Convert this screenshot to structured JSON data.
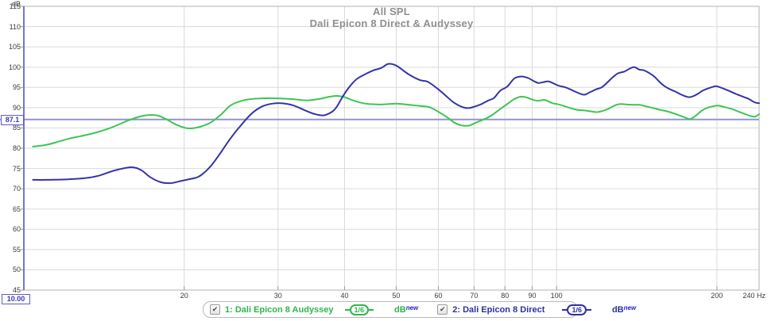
{
  "header": {
    "title": "All SPL",
    "subtitle": "Dali Epicon 8 Direct & Audyssey"
  },
  "y_axis": {
    "unit": "dB",
    "min": 45,
    "max": 115,
    "step": 5,
    "ticks": [
      115,
      110,
      105,
      100,
      95,
      90,
      85,
      80,
      75,
      70,
      65,
      60,
      55,
      50,
      45
    ]
  },
  "x_axis": {
    "unit": "Hz",
    "min": 10,
    "max": 240,
    "scale": "log",
    "ticks": [
      20,
      30,
      40,
      50,
      60,
      70,
      80,
      90,
      100,
      200
    ],
    "end_label": "240 Hz"
  },
  "cursor": {
    "freq_value": "10.00",
    "level_value": "87.1"
  },
  "legend": {
    "entries": [
      {
        "checked": true,
        "check_glyph": "✔",
        "label": "1: Dali Epicon 8 Audyssey",
        "smoothing": "1/6",
        "unit": "dB",
        "unit_suffix": "new",
        "color": "#2eb64d"
      },
      {
        "checked": true,
        "check_glyph": "✔",
        "label": "2: Dali Epicon 8 Direct",
        "smoothing": "1/6",
        "unit": "dB",
        "unit_suffix": "new",
        "color": "#30309e"
      }
    ]
  },
  "colors": {
    "audyssey_trace": "#3cc653",
    "direct_trace": "#3434a8",
    "target_line": "#9393ca",
    "axis_spine": "#7676cc",
    "grid": "#dadada",
    "border": "#b2b2b2",
    "title_text": "#8f8f8f",
    "tick_text": "#3a3a3a"
  },
  "chart_data": {
    "type": "line",
    "x_scale": "log",
    "x_range": [
      10,
      240
    ],
    "y_range": [
      45,
      115
    ],
    "x_unit": "Hz",
    "y_unit": "dB",
    "grid": true,
    "target_line_db": 87.1,
    "legend_position": "bottom",
    "title": "All SPL",
    "subtitle": "Dali Epicon 8 Direct & Audyssey",
    "series": [
      {
        "name": "1: Dali Epicon 8 Audyssey",
        "color": "#3cc653",
        "smoothing": "1/6",
        "points": [
          [
            10.4,
            80.4
          ],
          [
            11,
            80.8
          ],
          [
            11.6,
            81.6
          ],
          [
            12.2,
            82.4
          ],
          [
            12.8,
            83.0
          ],
          [
            13.6,
            83.8
          ],
          [
            14.6,
            85.1
          ],
          [
            15.6,
            86.7
          ],
          [
            16.4,
            87.7
          ],
          [
            17.2,
            88.2
          ],
          [
            17.9,
            88.0
          ],
          [
            18.6,
            87.0
          ],
          [
            19.4,
            85.7
          ],
          [
            20.3,
            84.9
          ],
          [
            21.3,
            85.2
          ],
          [
            22.4,
            86.3
          ],
          [
            23.4,
            88.2
          ],
          [
            24.4,
            90.5
          ],
          [
            25.5,
            91.6
          ],
          [
            26.6,
            92.1
          ],
          [
            28,
            92.3
          ],
          [
            30,
            92.3
          ],
          [
            32,
            92.1
          ],
          [
            34,
            91.8
          ],
          [
            36,
            92.2
          ],
          [
            37.5,
            92.7
          ],
          [
            38.8,
            92.9
          ],
          [
            40,
            92.6
          ],
          [
            41.5,
            91.8
          ],
          [
            43,
            91.2
          ],
          [
            44.5,
            90.9
          ],
          [
            47,
            90.8
          ],
          [
            50,
            91.0
          ],
          [
            53,
            90.7
          ],
          [
            55.5,
            90.4
          ],
          [
            57.8,
            90.1
          ],
          [
            60.5,
            88.7
          ],
          [
            62.5,
            87.5
          ],
          [
            64.5,
            86.2
          ],
          [
            66.5,
            85.6
          ],
          [
            68.5,
            85.6
          ],
          [
            70.5,
            86.3
          ],
          [
            73,
            87.1
          ],
          [
            75.5,
            88.1
          ],
          [
            78.4,
            89.7
          ],
          [
            80.8,
            90.9
          ],
          [
            83,
            92.0
          ],
          [
            85.5,
            92.7
          ],
          [
            88,
            92.5
          ],
          [
            90.5,
            91.9
          ],
          [
            92.4,
            91.7
          ],
          [
            95,
            91.9
          ],
          [
            98.3,
            91.1
          ],
          [
            101,
            90.8
          ],
          [
            105,
            90.1
          ],
          [
            109,
            89.5
          ],
          [
            113,
            89.3
          ],
          [
            116,
            89.1
          ],
          [
            119,
            88.9
          ],
          [
            122,
            89.2
          ],
          [
            125,
            89.7
          ],
          [
            127.5,
            90.3
          ],
          [
            129.5,
            90.7
          ],
          [
            132,
            90.9
          ],
          [
            135,
            90.8
          ],
          [
            139,
            90.7
          ],
          [
            143,
            90.7
          ],
          [
            147.5,
            90.3
          ],
          [
            152,
            89.9
          ],
          [
            156,
            89.5
          ],
          [
            160,
            89.2
          ],
          [
            165,
            88.7
          ],
          [
            170,
            88.1
          ],
          [
            174,
            87.6
          ],
          [
            178,
            87.2
          ],
          [
            182,
            87.9
          ],
          [
            187.5,
            89.3
          ],
          [
            192,
            90.0
          ],
          [
            196,
            90.3
          ],
          [
            201,
            90.5
          ],
          [
            206,
            90.2
          ],
          [
            213,
            89.7
          ],
          [
            219,
            89.1
          ],
          [
            226,
            88.4
          ],
          [
            232,
            87.9
          ],
          [
            236,
            87.8
          ],
          [
            240,
            88.4
          ]
        ]
      },
      {
        "name": "2: Dali Epicon 8 Direct",
        "color": "#3434a8",
        "smoothing": "1/6",
        "points": [
          [
            10.4,
            72.2
          ],
          [
            11,
            72.2
          ],
          [
            12,
            72.3
          ],
          [
            13,
            72.6
          ],
          [
            13.8,
            73.2
          ],
          [
            14.8,
            74.5
          ],
          [
            15.9,
            75.3
          ],
          [
            16.6,
            74.6
          ],
          [
            17.3,
            72.8
          ],
          [
            18.1,
            71.6
          ],
          [
            18.9,
            71.4
          ],
          [
            19.7,
            71.9
          ],
          [
            20.5,
            72.4
          ],
          [
            21.3,
            73.0
          ],
          [
            22.3,
            75.2
          ],
          [
            23.3,
            78.5
          ],
          [
            24.3,
            82.0
          ],
          [
            25.5,
            85.5
          ],
          [
            26.8,
            88.6
          ],
          [
            28,
            90.3
          ],
          [
            29.3,
            91.0
          ],
          [
            30.5,
            91.1
          ],
          [
            32,
            90.6
          ],
          [
            33.5,
            89.5
          ],
          [
            35,
            88.5
          ],
          [
            36.5,
            88.1
          ],
          [
            37.9,
            89.0
          ],
          [
            38.7,
            90.3
          ],
          [
            39.5,
            92.3
          ],
          [
            40.4,
            94.3
          ],
          [
            41.3,
            95.9
          ],
          [
            42.3,
            97.2
          ],
          [
            43.8,
            98.3
          ],
          [
            45.3,
            99.2
          ],
          [
            46.9,
            99.8
          ],
          [
            48.3,
            100.8
          ],
          [
            50,
            100.4
          ],
          [
            52.8,
            98.2
          ],
          [
            55.4,
            96.8
          ],
          [
            57.3,
            96.4
          ],
          [
            59.9,
            94.6
          ],
          [
            62,
            92.9
          ],
          [
            64.1,
            91.3
          ],
          [
            66.4,
            90.2
          ],
          [
            68.3,
            89.9
          ],
          [
            70.3,
            90.3
          ],
          [
            72.3,
            90.9
          ],
          [
            74.5,
            91.8
          ],
          [
            76.3,
            92.4
          ],
          [
            78.4,
            94.2
          ],
          [
            80.8,
            95.2
          ],
          [
            83.3,
            97.2
          ],
          [
            86,
            97.7
          ],
          [
            88.5,
            97.3
          ],
          [
            90.5,
            96.6
          ],
          [
            92.4,
            96.1
          ],
          [
            94.5,
            96.3
          ],
          [
            96.5,
            96.5
          ],
          [
            98.3,
            96.1
          ],
          [
            101,
            95.4
          ],
          [
            104,
            95.0
          ],
          [
            107,
            94.3
          ],
          [
            110,
            93.6
          ],
          [
            112.7,
            93.2
          ],
          [
            115.5,
            93.8
          ],
          [
            118.5,
            94.5
          ],
          [
            121.5,
            95.0
          ],
          [
            124.5,
            96.2
          ],
          [
            127.5,
            97.5
          ],
          [
            130.5,
            98.5
          ],
          [
            134,
            98.9
          ],
          [
            137,
            99.6
          ],
          [
            140,
            100.0
          ],
          [
            143,
            99.4
          ],
          [
            146,
            99.2
          ],
          [
            149,
            98.6
          ],
          [
            152.5,
            97.7
          ],
          [
            156.8,
            96.1
          ],
          [
            160,
            95.2
          ],
          [
            163.5,
            94.5
          ],
          [
            167,
            94.0
          ],
          [
            171,
            93.3
          ],
          [
            174.5,
            92.8
          ],
          [
            177.5,
            92.6
          ],
          [
            181,
            92.9
          ],
          [
            184.5,
            93.5
          ],
          [
            188,
            94.2
          ],
          [
            192,
            94.7
          ],
          [
            196,
            95.1
          ],
          [
            199,
            95.3
          ],
          [
            203,
            95.0
          ],
          [
            207.5,
            94.5
          ],
          [
            212,
            94.0
          ],
          [
            217,
            93.4
          ],
          [
            221,
            93.0
          ],
          [
            226,
            92.5
          ],
          [
            230,
            92.1
          ],
          [
            234,
            91.5
          ],
          [
            237,
            91.2
          ],
          [
            240,
            91.1
          ]
        ]
      }
    ]
  }
}
